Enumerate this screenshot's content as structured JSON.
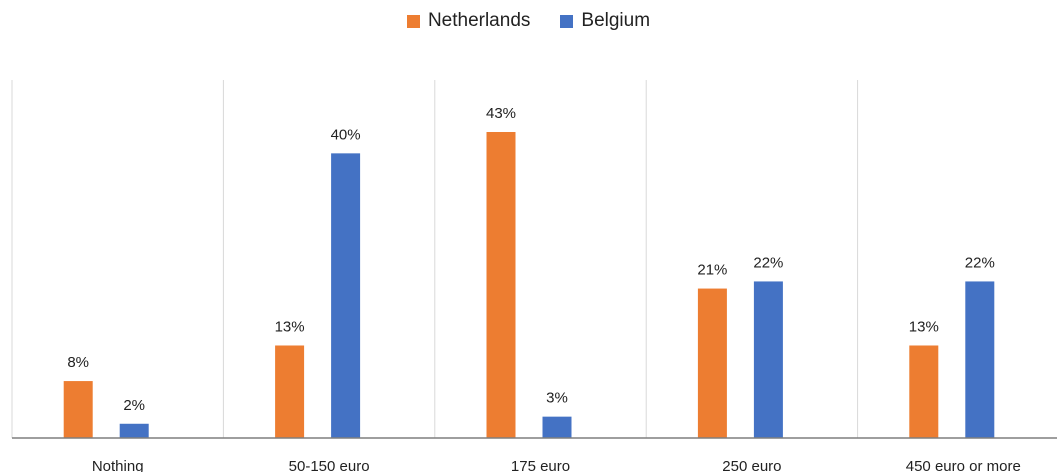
{
  "chart_data": {
    "type": "bar",
    "categories": [
      "Nothing",
      "50-150 euro",
      "175 euro",
      "250 euro",
      "450 euro or more"
    ],
    "series": [
      {
        "name": "Netherlands",
        "color": "#ED7D31",
        "values": [
          8,
          13,
          43,
          21,
          13
        ]
      },
      {
        "name": "Belgium",
        "color": "#4472C4",
        "values": [
          2,
          40,
          3,
          22,
          22
        ]
      }
    ],
    "data_labels": {
      "Netherlands": [
        "8%",
        "13%",
        "43%",
        "21%",
        "13%"
      ],
      "Belgium": [
        "2%",
        "40%",
        "3%",
        "22%",
        "22%"
      ]
    },
    "ylim": [
      0,
      45
    ],
    "legend_position": "top-center",
    "grid": "vertical category separators"
  }
}
